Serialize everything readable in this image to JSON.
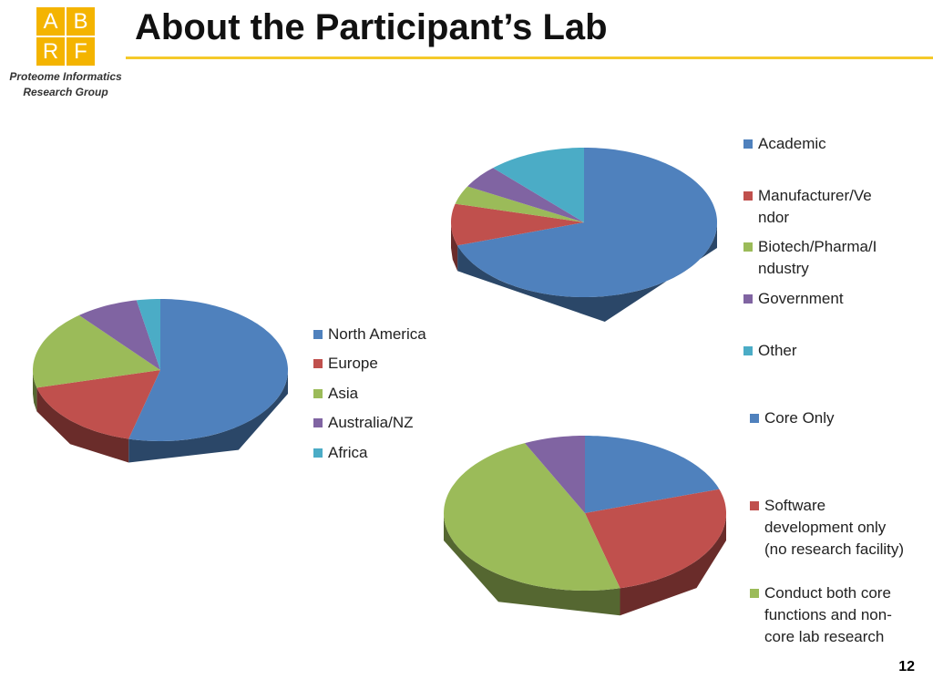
{
  "header": {
    "logo": [
      "A",
      "B",
      "R",
      "F"
    ],
    "group": [
      "Proteome Informatics",
      "Research Group"
    ],
    "title": "About the Participant’s Lab"
  },
  "footer": {
    "page": "12"
  },
  "chart_data": [
    {
      "type": "pie",
      "categories": [
        "Academic",
        "Manufacturer/Vendor",
        "Biotech/Pharma/Industry",
        "Government",
        "Other"
      ],
      "values": [
        70,
        9,
        4,
        5,
        12
      ],
      "colors": [
        "#4f81bd",
        "#c0504d",
        "#9bbb59",
        "#8064a2",
        "#4bacc6"
      ]
    },
    {
      "type": "pie",
      "categories": [
        "North America",
        "Europe",
        "Asia",
        "Australia/NZ",
        "Africa"
      ],
      "values": [
        54,
        17,
        18,
        8,
        3
      ],
      "colors": [
        "#4f81bd",
        "#c0504d",
        "#9bbb59",
        "#8064a2",
        "#4bacc6"
      ]
    },
    {
      "type": "pie",
      "categories": [
        "Core Only",
        "Software development only (no research facility)",
        "Conduct both core functions and non-core lab research",
        null
      ],
      "values": [
        20,
        26,
        47,
        7
      ],
      "colors": [
        "#4f81bd",
        "#c0504d",
        "#9bbb59",
        "#8064a2"
      ]
    }
  ]
}
